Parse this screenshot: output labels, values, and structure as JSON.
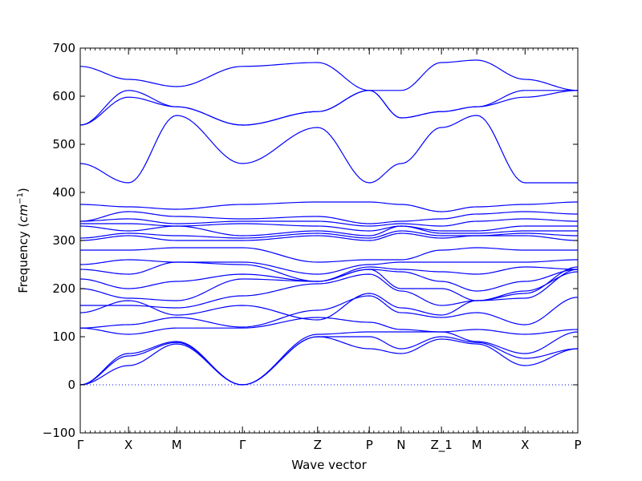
{
  "chart_data": {
    "type": "line",
    "title": "",
    "xlabel": "Wave vector",
    "ylabel": "Frequency",
    "ylabel_unit": "cm",
    "ylabel_unit_exp": "−1",
    "ylim": [
      -100,
      700
    ],
    "yticks": [
      -100,
      0,
      100,
      200,
      300,
      400,
      500,
      600,
      700
    ],
    "legend": "none",
    "grid": false,
    "line_color": "#0000ff",
    "zero_line_color": "#0000ff",
    "high_symmetry_points": [
      {
        "label": "Γ",
        "x": 0.0
      },
      {
        "label": "X",
        "x": 0.097
      },
      {
        "label": "M",
        "x": 0.194
      },
      {
        "label": "Γ",
        "x": 0.326
      },
      {
        "label": "Z",
        "x": 0.477
      },
      {
        "label": "P",
        "x": 0.581
      },
      {
        "label": "N",
        "x": 0.645
      },
      {
        "label": "Z_1",
        "x": 0.726
      },
      {
        "label": "M",
        "x": 0.797
      },
      {
        "label": "X",
        "x": 0.894
      },
      {
        "label": "P",
        "x": 1.0
      }
    ],
    "series": [
      {
        "values": [
          0,
          40,
          85,
          0,
          100,
          75,
          65,
          95,
          85,
          40,
          75
        ]
      },
      {
        "values": [
          0,
          60,
          88,
          0,
          100,
          100,
          75,
          100,
          88,
          55,
          75
        ]
      },
      {
        "values": [
          0,
          65,
          90,
          0,
          105,
          110,
          110,
          110,
          90,
          65,
          110
        ]
      },
      {
        "values": [
          118,
          105,
          118,
          118,
          140,
          130,
          115,
          110,
          115,
          105,
          115
        ]
      },
      {
        "values": [
          118,
          125,
          140,
          120,
          155,
          185,
          150,
          140,
          150,
          125,
          182
        ]
      },
      {
        "values": [
          150,
          175,
          145,
          165,
          135,
          190,
          160,
          145,
          175,
          180,
          240
        ]
      },
      {
        "values": [
          165,
          165,
          160,
          185,
          210,
          230,
          195,
          165,
          175,
          190,
          245
        ]
      },
      {
        "values": [
          200,
          180,
          175,
          220,
          215,
          240,
          200,
          200,
          175,
          195,
          235
        ]
      },
      {
        "values": [
          220,
          200,
          215,
          230,
          215,
          240,
          235,
          215,
          195,
          215,
          240
        ]
      },
      {
        "values": [
          240,
          230,
          255,
          250,
          215,
          245,
          240,
          235,
          230,
          245,
          240
        ]
      },
      {
        "values": [
          250,
          260,
          255,
          255,
          230,
          250,
          255,
          255,
          255,
          255,
          260
        ]
      },
      {
        "values": [
          280,
          280,
          285,
          285,
          255,
          260,
          260,
          280,
          285,
          280,
          280
        ]
      },
      {
        "values": [
          300,
          310,
          300,
          300,
          310,
          300,
          315,
          305,
          310,
          310,
          300
        ]
      },
      {
        "values": [
          305,
          315,
          310,
          305,
          315,
          305,
          320,
          310,
          310,
          315,
          310
        ]
      },
      {
        "values": [
          330,
          320,
          330,
          310,
          320,
          310,
          330,
          315,
          315,
          320,
          320
        ]
      },
      {
        "values": [
          335,
          335,
          330,
          335,
          330,
          320,
          330,
          320,
          320,
          330,
          330
        ]
      },
      {
        "values": [
          340,
          345,
          335,
          340,
          340,
          330,
          335,
          330,
          340,
          345,
          340
        ]
      },
      {
        "values": [
          340,
          360,
          350,
          345,
          350,
          335,
          340,
          345,
          355,
          360,
          355
        ]
      },
      {
        "values": [
          375,
          370,
          365,
          375,
          380,
          380,
          375,
          360,
          370,
          375,
          380
        ]
      },
      {
        "values": [
          460,
          420,
          560,
          460,
          535,
          420,
          460,
          535,
          560,
          420,
          420
        ]
      },
      {
        "values": [
          540,
          598,
          578,
          540,
          568,
          612,
          555,
          568,
          578,
          598,
          612
        ]
      },
      {
        "values": [
          540,
          612,
          578,
          540,
          568,
          612,
          555,
          568,
          578,
          612,
          612
        ]
      },
      {
        "values": [
          662,
          635,
          620,
          662,
          670,
          612,
          612,
          670,
          675,
          635,
          612
        ]
      }
    ]
  }
}
